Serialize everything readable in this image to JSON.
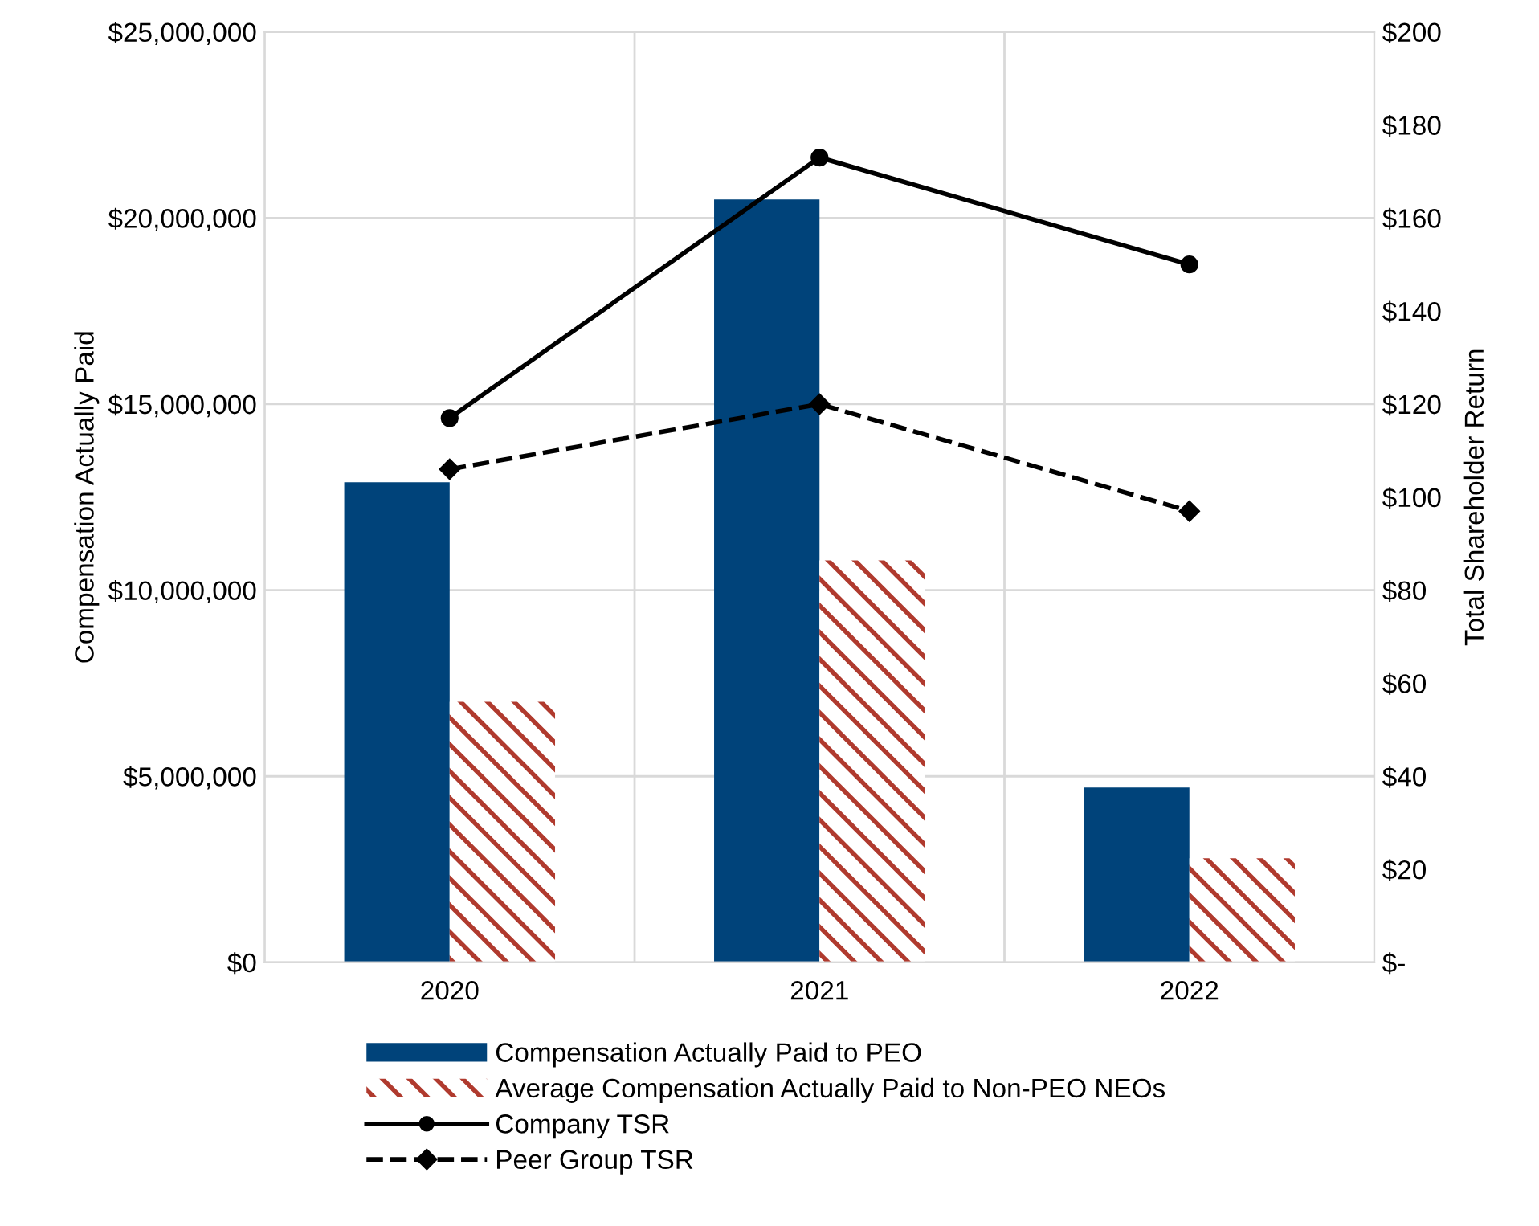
{
  "chart_data": {
    "type": "bar",
    "ylabel": "Compensation Actually Paid",
    "y2label": "Total Shareholder Return",
    "categories": [
      "2020",
      "2021",
      "2022"
    ],
    "series": [
      {
        "name": "Compensation Actually Paid to PEO",
        "color": "#00437a",
        "values": [
          12900000,
          20500000,
          4700000
        ]
      },
      {
        "name": "Average Compensation Actually Paid to Non-PEO NEOs",
        "color": "#b03a2e",
        "values": [
          7000000,
          10800000,
          2800000
        ]
      },
      {
        "name": "Company TSR",
        "type": "line",
        "axis": "y2",
        "color": "#000000",
        "marker": "circle",
        "line_style": "solid",
        "values": [
          117,
          173,
          150
        ]
      },
      {
        "name": "Peer Group TSR",
        "type": "line",
        "axis": "y2",
        "color": "#000000",
        "marker": "diamond",
        "line_style": "dashed",
        "values": [
          106,
          120,
          97
        ]
      }
    ],
    "ylim": [
      0,
      25000000
    ],
    "yticks": [
      {
        "value": 0,
        "label": "$0"
      },
      {
        "value": 5000000,
        "label": "$5,000,000"
      },
      {
        "value": 10000000,
        "label": "$10,000,000"
      },
      {
        "value": 15000000,
        "label": "$15,000,000"
      },
      {
        "value": 20000000,
        "label": "$20,000,000"
      },
      {
        "value": 25000000,
        "label": "$25,000,000"
      }
    ],
    "y2lim": [
      0,
      200
    ],
    "y2ticks": [
      {
        "value": 0,
        "label": "$-"
      },
      {
        "value": 20,
        "label": "$20"
      },
      {
        "value": 40,
        "label": "$40"
      },
      {
        "value": 60,
        "label": "$60"
      },
      {
        "value": 80,
        "label": "$80"
      },
      {
        "value": 100,
        "label": "$100"
      },
      {
        "value": 120,
        "label": "$120"
      },
      {
        "value": 140,
        "label": "$140"
      },
      {
        "value": 160,
        "label": "$160"
      },
      {
        "value": 180,
        "label": "$180"
      },
      {
        "value": 200,
        "label": "$200"
      }
    ],
    "grid": true,
    "legend": "bottom"
  }
}
